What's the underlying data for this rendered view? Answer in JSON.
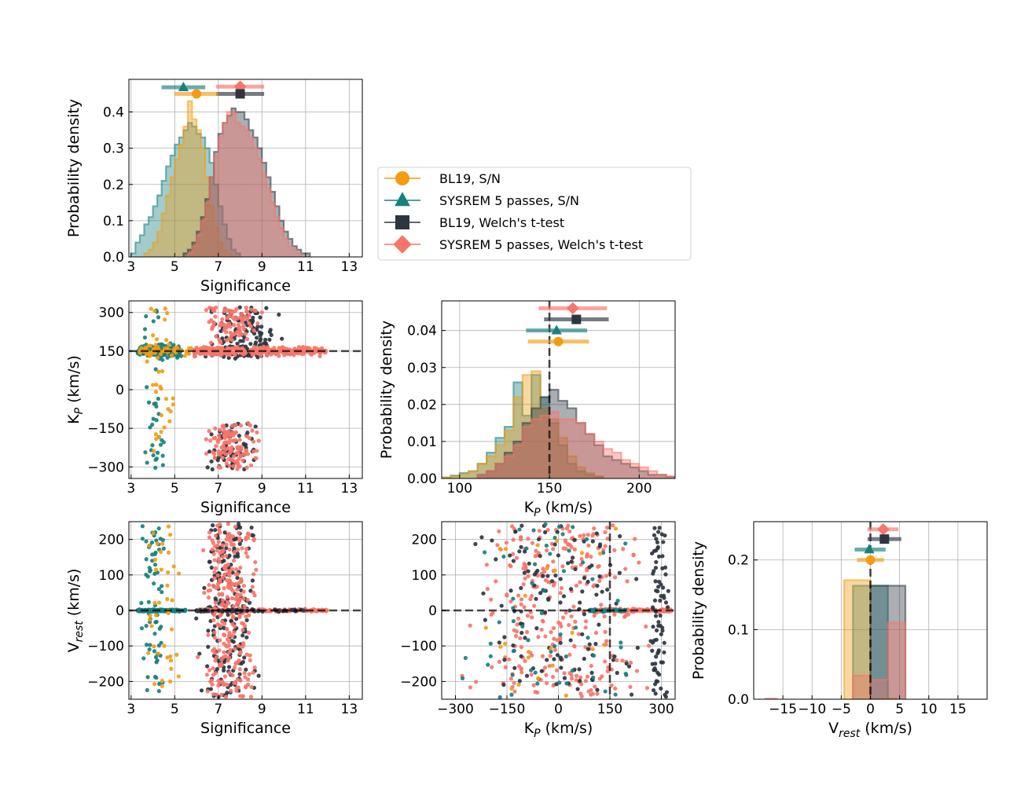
{
  "colors": {
    "bl19_sn": "#f39c12",
    "sysrem_sn": "#17807e",
    "bl19_t": "#2c3540",
    "sysrem_t": "#f7756a",
    "grid": "#b0b0b0"
  },
  "chart_data": {
    "type": "corner",
    "legend": {
      "placement": "center-right",
      "entries": [
        {
          "key": "bl19_sn",
          "label": "BL19, S/N",
          "marker": "circle"
        },
        {
          "key": "sysrem_sn",
          "label": "SYSREM 5 passes, S/N",
          "marker": "triangle"
        },
        {
          "key": "bl19_t",
          "label": "BL19, Welch's t-test",
          "marker": "square"
        },
        {
          "key": "sysrem_t",
          "label": "SYSREM 5 passes, Welch's t-test",
          "marker": "diamond"
        }
      ]
    },
    "panels": [
      {
        "id": "hist_sig",
        "type": "histogram",
        "xlabel": "Significance",
        "ylabel": "Probability density",
        "xlim": [
          2.9,
          13.6
        ],
        "ylim": [
          0,
          0.49
        ],
        "xticks": [
          3,
          5,
          7,
          9,
          11,
          13
        ],
        "xticklabels": [
          "3",
          "5",
          "7",
          "9",
          "11",
          "13"
        ],
        "yticks": [
          0,
          0.1,
          0.2,
          0.3,
          0.4
        ],
        "yticklabels": [
          "0.0",
          "0.1",
          "0.2",
          "0.3",
          "0.4"
        ],
        "series": [
          {
            "key": "sysrem_sn",
            "bin_start": 3.0,
            "bin_width": 0.2,
            "values": [
              0.01,
              0.04,
              0.06,
              0.09,
              0.11,
              0.14,
              0.17,
              0.21,
              0.25,
              0.28,
              0.31,
              0.33,
              0.35,
              0.37,
              0.36,
              0.34,
              0.33,
              0.3,
              0.26,
              0.2,
              0.14,
              0.09,
              0.05,
              0.02,
              0.01
            ]
          },
          {
            "key": "bl19_sn",
            "bin_start": 3.6,
            "bin_width": 0.2,
            "values": [
              0.01,
              0.02,
              0.04,
              0.07,
              0.12,
              0.17,
              0.22,
              0.27,
              0.31,
              0.36,
              0.43,
              0.38,
              0.35,
              0.3,
              0.22,
              0.14,
              0.08,
              0.04,
              0.02,
              0.01
            ]
          },
          {
            "key": "bl19_t",
            "bin_start": 5.4,
            "bin_width": 0.2,
            "values": [
              0.01,
              0.02,
              0.04,
              0.07,
              0.11,
              0.16,
              0.22,
              0.29,
              0.34,
              0.37,
              0.39,
              0.41,
              0.4,
              0.4,
              0.38,
              0.35,
              0.33,
              0.3,
              0.26,
              0.22,
              0.18,
              0.14,
              0.1,
              0.07,
              0.05,
              0.03,
              0.02,
              0.01,
              0.01
            ]
          },
          {
            "key": "sysrem_t",
            "bin_start": 5.6,
            "bin_width": 0.2,
            "values": [
              0.01,
              0.03,
              0.06,
              0.1,
              0.15,
              0.22,
              0.28,
              0.33,
              0.37,
              0.4,
              0.4,
              0.37,
              0.36,
              0.35,
              0.33,
              0.3,
              0.27,
              0.23,
              0.19,
              0.15,
              0.11,
              0.08,
              0.05,
              0.03,
              0.02,
              0.01
            ]
          }
        ],
        "errorbars": [
          {
            "key": "sysrem_t",
            "center": 8.0,
            "low": 6.9,
            "high": 9.1,
            "y": 0.47
          },
          {
            "key": "sysrem_sn",
            "center": 5.4,
            "low": 4.4,
            "high": 6.4,
            "y": 0.468
          },
          {
            "key": "bl19_t",
            "center": 8.0,
            "low": 6.9,
            "high": 9.1,
            "y": 0.45
          },
          {
            "key": "bl19_sn",
            "center": 6.0,
            "low": 5.0,
            "high": 7.0,
            "y": 0.45
          }
        ]
      },
      {
        "id": "scatter_kp_sig",
        "type": "scatter",
        "xlabel": "Significance",
        "ylabel": "K_P (km/s)",
        "xlim": [
          2.9,
          13.6
        ],
        "ylim": [
          -345,
          345
        ],
        "xticks": [
          3,
          5,
          7,
          9,
          11,
          13
        ],
        "xticklabels": [
          "3",
          "5",
          "7",
          "9",
          "11",
          "13"
        ],
        "yticks": [
          -300,
          -150,
          0,
          150,
          300
        ],
        "yticklabels": [
          "−300",
          "−150",
          "0",
          "150",
          "300"
        ],
        "hline": 150,
        "clusters": [
          {
            "key": "sysrem_sn",
            "n": 150,
            "x": [
              3.3,
              5.3
            ],
            "y": [
              115,
              185
            ],
            "mode": "band"
          },
          {
            "key": "bl19_sn",
            "n": 60,
            "x": [
              3.4,
              5.8
            ],
            "y": [
              120,
              180
            ],
            "mode": "band"
          },
          {
            "key": "sysrem_sn",
            "n": 40,
            "x": [
              3.3,
              5.0
            ],
            "y": [
              -320,
              320
            ],
            "mode": "uniform"
          },
          {
            "key": "bl19_sn",
            "n": 35,
            "x": [
              3.4,
              5.5
            ],
            "y": [
              -320,
              320
            ],
            "mode": "uniform"
          },
          {
            "key": "bl19_t",
            "n": 130,
            "x": [
              5.8,
              10.5
            ],
            "y": [
              120,
              320
            ],
            "mode": "uniform"
          },
          {
            "key": "sysrem_t",
            "n": 300,
            "x": [
              5.9,
              12.0
            ],
            "y": [
              125,
              175
            ],
            "mode": "band"
          },
          {
            "key": "sysrem_t",
            "n": 90,
            "x": [
              5.9,
              9.5
            ],
            "y": [
              180,
              320
            ],
            "mode": "uniform"
          },
          {
            "key": "bl19_t",
            "n": 70,
            "x": [
              6.0,
              9.2
            ],
            "y": [
              -310,
              -130
            ],
            "mode": "uniform"
          },
          {
            "key": "sysrem_t",
            "n": 110,
            "x": [
              6.0,
              9.2
            ],
            "y": [
              -310,
              -130
            ],
            "mode": "uniform"
          }
        ]
      },
      {
        "id": "hist_kp",
        "type": "histogram",
        "xlabel": "K_P (km/s)",
        "ylabel": "Probability density",
        "xlim": [
          90,
          220
        ],
        "ylim": [
          0,
          0.048
        ],
        "xticks": [
          100,
          150,
          200
        ],
        "xticklabels": [
          "100",
          "150",
          "200"
        ],
        "yticks": [
          0,
          0.01,
          0.02,
          0.03,
          0.04
        ],
        "yticklabels": [
          "0.00",
          "0.01",
          "0.02",
          "0.03",
          "0.04"
        ],
        "vline": 150,
        "series": [
          {
            "key": "sysrem_sn",
            "bin_start": 90,
            "bin_width": 5,
            "values": [
              0.0003,
              0.0008,
              0.0015,
              0.002,
              0.004,
              0.007,
              0.011,
              0.014,
              0.026,
              0.017,
              0.028,
              0.022,
              0.015,
              0.009,
              0.004,
              0.002,
              0.001,
              0.0005
            ]
          },
          {
            "key": "bl19_sn",
            "bin_start": 90,
            "bin_width": 5,
            "values": [
              0.0003,
              0.0006,
              0.0012,
              0.002,
              0.004,
              0.006,
              0.009,
              0.013,
              0.022,
              0.028,
              0.029,
              0.019,
              0.016,
              0.011,
              0.006,
              0.003,
              0.0015,
              0.0006
            ]
          },
          {
            "key": "bl19_t",
            "bin_start": 110,
            "bin_width": 5,
            "values": [
              0.001,
              0.002,
              0.004,
              0.007,
              0.01,
              0.015,
              0.019,
              0.022,
              0.024,
              0.021,
              0.019,
              0.015,
              0.012,
              0.009,
              0.006,
              0.005,
              0.004,
              0.003,
              0.002,
              0.001,
              0.001,
              0.0005
            ]
          },
          {
            "key": "sysrem_t",
            "bin_start": 110,
            "bin_width": 5,
            "values": [
              0.001,
              0.002,
              0.004,
              0.006,
              0.009,
              0.014,
              0.016,
              0.017,
              0.018,
              0.016,
              0.016,
              0.015,
              0.012,
              0.01,
              0.008,
              0.007,
              0.005,
              0.004,
              0.003,
              0.002,
              0.001,
              0.0005
            ]
          }
        ],
        "errorbars": [
          {
            "key": "sysrem_t",
            "center": 163,
            "low": 144,
            "high": 182,
            "y": 0.046
          },
          {
            "key": "bl19_t",
            "center": 165,
            "low": 147,
            "high": 183,
            "y": 0.043
          },
          {
            "key": "sysrem_sn",
            "center": 154,
            "low": 137,
            "high": 171,
            "y": 0.04
          },
          {
            "key": "bl19_sn",
            "center": 155,
            "low": 138,
            "high": 172,
            "y": 0.037
          }
        ]
      },
      {
        "id": "scatter_vrest_sig",
        "type": "scatter",
        "xlabel": "Significance",
        "ylabel": "V_rest (km/s)",
        "xlim": [
          2.9,
          13.6
        ],
        "ylim": [
          -250,
          250
        ],
        "xticks": [
          3,
          5,
          7,
          9,
          11,
          13
        ],
        "xticklabels": [
          "3",
          "5",
          "7",
          "9",
          "11",
          "13"
        ],
        "yticks": [
          -200,
          -100,
          0,
          100,
          200
        ],
        "yticklabels": [
          "−200",
          "−100",
          "0",
          "100",
          "200"
        ],
        "hline": 0,
        "clusters": [
          {
            "key": "sysrem_sn",
            "n": 200,
            "x": [
              3.3,
              5.5
            ],
            "y": [
              -4,
              4
            ],
            "mode": "band"
          },
          {
            "key": "sysrem_sn",
            "n": 70,
            "x": [
              3.3,
              4.8
            ],
            "y": [
              -240,
              240
            ],
            "mode": "uniform"
          },
          {
            "key": "bl19_sn",
            "n": 40,
            "x": [
              3.4,
              5.5
            ],
            "y": [
              -240,
              240
            ],
            "mode": "uniform"
          },
          {
            "key": "bl19_t",
            "n": 200,
            "x": [
              5.8,
              9.2
            ],
            "y": [
              -245,
              245
            ],
            "mode": "uniform"
          },
          {
            "key": "sysrem_t",
            "n": 280,
            "x": [
              5.9,
              9.2
            ],
            "y": [
              -245,
              245
            ],
            "mode": "uniform"
          },
          {
            "key": "sysrem_t",
            "n": 220,
            "x": [
              6.0,
              12.0
            ],
            "y": [
              -5,
              5
            ],
            "mode": "band"
          },
          {
            "key": "bl19_t",
            "n": 60,
            "x": [
              6.0,
              11.0
            ],
            "y": [
              -5,
              5
            ],
            "mode": "band"
          }
        ]
      },
      {
        "id": "scatter_vrest_kp",
        "type": "scatter",
        "xlabel": "K_P (km/s)",
        "ylabel": "",
        "xlim": [
          -340,
          340
        ],
        "ylim": [
          -250,
          250
        ],
        "xticks": [
          -300,
          -150,
          0,
          150,
          300
        ],
        "xticklabels": [
          "−300",
          "−150",
          "0",
          "150",
          "300"
        ],
        "yticks": [
          -200,
          -100,
          0,
          100,
          200
        ],
        "yticklabels": [
          "−200",
          "−100",
          "0",
          "100",
          "200"
        ],
        "hline": 0,
        "vline": 150,
        "clusters": [
          {
            "key": "sysrem_t",
            "n": 280,
            "x": [
              -330,
              330
            ],
            "y": [
              -245,
              245
            ],
            "mode": "uniform"
          },
          {
            "key": "bl19_t",
            "n": 130,
            "x": [
              -330,
              330
            ],
            "y": [
              -245,
              245
            ],
            "mode": "uniform"
          },
          {
            "key": "sysrem_sn",
            "n": 60,
            "x": [
              -330,
              330
            ],
            "y": [
              -245,
              245
            ],
            "mode": "uniform"
          },
          {
            "key": "bl19_sn",
            "n": 25,
            "x": [
              -330,
              330
            ],
            "y": [
              -245,
              245
            ],
            "mode": "uniform"
          },
          {
            "key": "sysrem_t",
            "n": 180,
            "x": [
              100,
              330
            ],
            "y": [
              -6,
              6
            ],
            "mode": "band"
          },
          {
            "key": "bl19_t",
            "n": 80,
            "x": [
              260,
              330
            ],
            "y": [
              -245,
              245
            ],
            "mode": "uniform"
          },
          {
            "key": "sysrem_sn",
            "n": 40,
            "x": [
              90,
              200
            ],
            "y": [
              -5,
              5
            ],
            "mode": "band"
          }
        ]
      },
      {
        "id": "hist_vrest",
        "type": "histogram",
        "xlabel": "V_rest (km/s)",
        "ylabel": "Probability density",
        "xlim": [
          -20,
          20
        ],
        "ylim": [
          0,
          0.255
        ],
        "xticks": [
          -15,
          -10,
          -5,
          0,
          5,
          10,
          15
        ],
        "xticklabels": [
          "−15",
          "−10",
          "−5",
          "0",
          "5",
          "10",
          "15"
        ],
        "yticks": [
          0,
          0.1,
          0.2
        ],
        "yticklabels": [
          "0.0",
          "0.1",
          "0.2"
        ],
        "vline": 0,
        "series": [
          {
            "key": "bl19_sn",
            "bin_start": -4.5,
            "bin_width": 4.5,
            "values": [
              0.171,
              0.001
            ]
          },
          {
            "key": "sysrem_sn",
            "bin_start": -3.0,
            "bin_width": 6.0,
            "values": [
              0.163
            ]
          },
          {
            "key": "bl19_t",
            "bin_start": 0.0,
            "bin_width": 6.0,
            "values": [
              0.163
            ]
          },
          {
            "key": "sysrem_t",
            "bin_start": -18.0,
            "bin_width": 2.0,
            "values": [
              0.001
            ]
          },
          {
            "key": "sysrem_t",
            "bin_start": -3.0,
            "bin_width": 3.0,
            "values": [
              0.034,
              0.028,
              0.11
            ]
          }
        ],
        "errorbars": [
          {
            "key": "sysrem_t",
            "center": 2.2,
            "low": -0.5,
            "high": 4.8,
            "y": 0.244
          },
          {
            "key": "bl19_t",
            "center": 2.4,
            "low": -0.5,
            "high": 5.3,
            "y": 0.23
          },
          {
            "key": "sysrem_sn",
            "center": -0.2,
            "low": -2.7,
            "high": 2.6,
            "y": 0.215
          },
          {
            "key": "bl19_sn",
            "center": 0.0,
            "low": -2.3,
            "high": 2.3,
            "y": 0.2
          }
        ]
      }
    ]
  }
}
